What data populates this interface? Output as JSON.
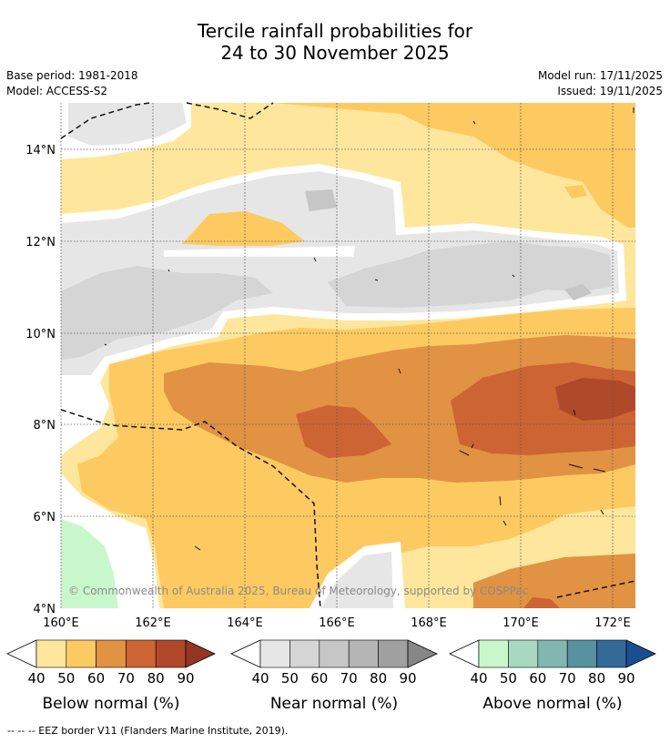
{
  "title": {
    "line1": "Tercile rainfall probabilities for",
    "line2": "24 to 30 November 2025"
  },
  "meta": {
    "base_period": "Base period: 1981-2018",
    "model": "Model: ACCESS-S2",
    "model_run": "Model run: 17/11/2025",
    "issued": "Issued: 19/11/2025"
  },
  "map": {
    "lat_labels": [
      "14°N",
      "12°N",
      "10°N",
      "8°N",
      "6°N",
      "4°N"
    ],
    "lon_labels": [
      "160°E",
      "162°E",
      "164°E",
      "166°E",
      "168°E",
      "170°E",
      "172°E"
    ],
    "copyright": "© Commonwealth of Australia 2025, Bureau of Meteorology, supported by COSPPac"
  },
  "colorbars": [
    {
      "title": "Below normal (%)",
      "ticks": [
        "40",
        "50",
        "60",
        "70",
        "80",
        "90"
      ],
      "colors": [
        "#ffffff",
        "#fee79c",
        "#fdca62",
        "#e19243",
        "#cc6433",
        "#b0482a",
        "#963622"
      ]
    },
    {
      "title": "Near normal (%)",
      "ticks": [
        "40",
        "50",
        "60",
        "70",
        "80",
        "90"
      ],
      "colors": [
        "#ffffff",
        "#e6e6e6",
        "#d5d5d5",
        "#c6c6c6",
        "#b4b4b4",
        "#a0a0a0",
        "#868686"
      ]
    },
    {
      "title": "Above normal (%)",
      "ticks": [
        "40",
        "50",
        "60",
        "70",
        "80",
        "90"
      ],
      "colors": [
        "#ffffff",
        "#c9f7cc",
        "#a6d9bf",
        "#80b7b1",
        "#5892a0",
        "#336a98",
        "#1a4f8f"
      ]
    }
  ],
  "footnote": "--  --  -- EEZ border V11 (Flanders Marine Institute, 2019)."
}
